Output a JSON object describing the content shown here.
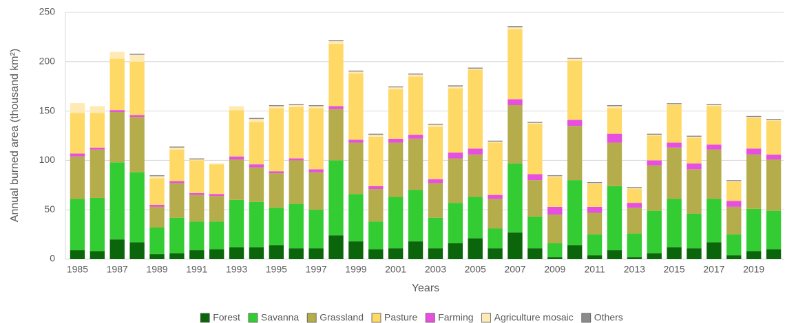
{
  "chart_data": {
    "type": "bar",
    "stacked": true,
    "y_label": "Annual burned area (thousand km²)",
    "x_label": "Years",
    "categories": [
      "1985",
      null,
      "1987",
      null,
      "1989",
      null,
      "1991",
      null,
      "1993",
      null,
      "1995",
      null,
      "1997",
      null,
      "1999",
      null,
      "2001",
      null,
      "2003",
      null,
      "2005",
      null,
      "2007",
      null,
      "2009",
      null,
      "2011",
      null,
      "2013",
      null,
      "2015",
      null,
      "2017",
      null,
      "2019",
      null
    ],
    "ylim": [
      0,
      250
    ],
    "yticks": [
      0,
      50,
      100,
      150,
      200,
      250
    ],
    "grid": true,
    "legend": "bottom",
    "series": [
      {
        "name": "Forest",
        "color": "#0b650b",
        "values": [
          9,
          8,
          20,
          17,
          5,
          6,
          9,
          10,
          12,
          12,
          14,
          11,
          11,
          24,
          18,
          10,
          11,
          18,
          11,
          16,
          21,
          11,
          27,
          11,
          2,
          14,
          4,
          9,
          2,
          6,
          12,
          11,
          17,
          4,
          8,
          10
        ]
      },
      {
        "name": "Savanna",
        "color": "#33cc33",
        "values": [
          52,
          54,
          78,
          71,
          27,
          36,
          29,
          28,
          48,
          46,
          38,
          45,
          39,
          76,
          48,
          28,
          52,
          52,
          31,
          41,
          42,
          20,
          70,
          32,
          14,
          66,
          21,
          65,
          24,
          43,
          49,
          35,
          44,
          21,
          43,
          39
        ]
      },
      {
        "name": "Grassland",
        "color": "#b5ad4c",
        "values": [
          43,
          49,
          51,
          56,
          21,
          35,
          27,
          26,
          41,
          35,
          35,
          44,
          38,
          52,
          52,
          33,
          55,
          52,
          35,
          45,
          43,
          30,
          59,
          37,
          29,
          55,
          22,
          44,
          26,
          46,
          52,
          45,
          50,
          28,
          55,
          52
        ]
      },
      {
        "name": "Pasture",
        "color": "#ffd966",
        "values": [
          41,
          35,
          52,
          54,
          27,
          32,
          33,
          30,
          47,
          43,
          64,
          52,
          62,
          63,
          67,
          50,
          50,
          59,
          53,
          65,
          80,
          53,
          71,
          51,
          30,
          60,
          23,
          26,
          14,
          25,
          38,
          26,
          39,
          19,
          31,
          34
        ]
      },
      {
        "name": "Farming",
        "color": "#e64fe0",
        "values": [
          3,
          2,
          2,
          2,
          2,
          2,
          2,
          2,
          3,
          3,
          2,
          2,
          3,
          3,
          3,
          3,
          4,
          4,
          4,
          6,
          6,
          4,
          6,
          6,
          8,
          6,
          6,
          9,
          5,
          5,
          5,
          6,
          5,
          6,
          6,
          5
        ]
      },
      {
        "name": "Agriculture mosaic",
        "color": "#ffeab5",
        "values": [
          10,
          7,
          7,
          7,
          2,
          2,
          1,
          1,
          4,
          3,
          2,
          2,
          2,
          3,
          2,
          2,
          2,
          2,
          2,
          2,
          1,
          1,
          2,
          1,
          1,
          2,
          1,
          2,
          1,
          1,
          1,
          1,
          1,
          1,
          1,
          1
        ]
      },
      {
        "name": "Others",
        "color": "#8c8c8c",
        "values": [
          0,
          0,
          0,
          1,
          1,
          1,
          1,
          0,
          0,
          1,
          1,
          1,
          1,
          1,
          1,
          1,
          1,
          1,
          1,
          1,
          1,
          1,
          1,
          1,
          1,
          1,
          1,
          1,
          1,
          1,
          1,
          1,
          1,
          1,
          1,
          1
        ]
      }
    ]
  }
}
